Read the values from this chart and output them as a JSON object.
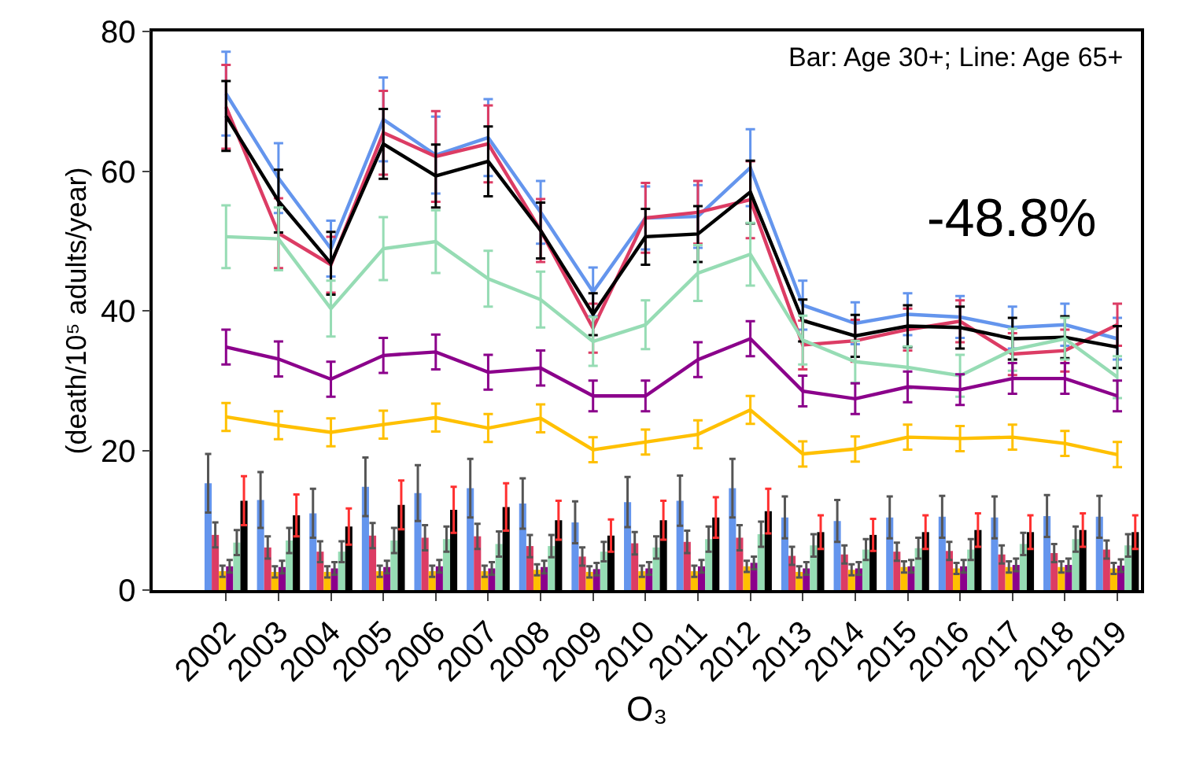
{
  "chart_data": {
    "type": "bar",
    "xlabel": "O₃",
    "ylabel": "(death/10⁵ adults/year)",
    "annotations": [
      "Bar: Age 30+; Line: Age 65+",
      "-48.8%"
    ],
    "categories": [
      "2002",
      "2003",
      "2004",
      "2005",
      "2006",
      "2007",
      "2008",
      "2009",
      "2010",
      "2011",
      "2012",
      "2013",
      "2014",
      "2015",
      "2016",
      "2017",
      "2018",
      "2019"
    ],
    "ylim": [
      0,
      80
    ],
    "yticks": [
      0,
      20,
      40,
      60,
      80
    ],
    "grid": false,
    "series": [
      {
        "color": "#6495ed",
        "values": [
          15.3,
          12.9,
          11.0,
          14.8,
          13.9,
          14.6,
          12.4,
          9.7,
          12.6,
          12.8,
          14.6,
          10.4,
          9.9,
          10.4,
          10.5,
          10.4,
          10.6,
          10.5
        ],
        "errors": [
          4.2,
          4.0,
          3.5,
          4.2,
          4.0,
          4.2,
          3.6,
          3.0,
          3.6,
          3.6,
          4.2,
          3.0,
          3.0,
          3.0,
          3.0,
          3.0,
          3.0,
          3.0
        ]
      },
      {
        "color": "#dc3c64",
        "values": [
          7.9,
          6.1,
          5.5,
          7.8,
          7.5,
          7.7,
          6.3,
          4.8,
          6.7,
          6.9,
          7.5,
          4.9,
          5.1,
          5.5,
          5.6,
          5.1,
          5.3,
          5.8
        ],
        "errors": [
          1.8,
          1.6,
          1.5,
          1.8,
          1.8,
          1.8,
          1.6,
          1.3,
          1.6,
          1.6,
          1.8,
          1.3,
          1.3,
          1.3,
          1.3,
          1.3,
          1.3,
          1.3
        ]
      },
      {
        "color": "#ffc000",
        "values": [
          2.7,
          2.6,
          2.6,
          2.7,
          2.7,
          2.7,
          2.9,
          2.6,
          2.7,
          2.7,
          3.4,
          2.6,
          2.9,
          3.3,
          3.1,
          3.3,
          3.3,
          3.1
        ],
        "errors": [
          0.8,
          0.8,
          0.8,
          0.8,
          0.8,
          0.8,
          0.8,
          0.8,
          0.8,
          0.8,
          0.8,
          0.8,
          0.8,
          0.8,
          0.8,
          0.8,
          0.8,
          0.8
        ]
      },
      {
        "color": "#8b008b",
        "values": [
          3.4,
          3.3,
          3.1,
          3.3,
          3.4,
          3.1,
          3.3,
          3.0,
          3.1,
          3.4,
          3.9,
          3.1,
          3.1,
          3.4,
          3.4,
          3.6,
          3.6,
          3.5
        ],
        "errors": [
          0.9,
          0.9,
          0.9,
          0.9,
          0.9,
          0.9,
          0.9,
          0.9,
          0.9,
          0.9,
          0.9,
          0.9,
          0.9,
          0.9,
          0.9,
          0.9,
          0.9,
          0.9
        ]
      },
      {
        "color": "#96dcb4",
        "values": [
          6.8,
          7.1,
          5.5,
          7.1,
          7.3,
          6.6,
          6.3,
          5.5,
          6.1,
          7.3,
          8.0,
          6.4,
          5.8,
          6.0,
          5.8,
          6.6,
          7.3,
          6.4
        ],
        "errors": [
          1.8,
          1.8,
          1.5,
          1.8,
          1.8,
          1.8,
          1.6,
          1.4,
          1.6,
          1.8,
          1.8,
          1.6,
          1.5,
          1.5,
          1.5,
          1.6,
          1.8,
          1.6
        ]
      },
      {
        "color": "#000000",
        "values": [
          12.8,
          10.7,
          9.1,
          12.2,
          11.5,
          11.9,
          10.0,
          7.8,
          10.0,
          10.4,
          11.3,
          8.3,
          7.9,
          8.3,
          8.6,
          8.3,
          8.6,
          8.3
        ],
        "errors": [
          3.5,
          3.0,
          2.6,
          3.5,
          3.3,
          3.4,
          2.8,
          2.3,
          2.8,
          2.9,
          3.2,
          2.4,
          2.3,
          2.4,
          2.4,
          2.4,
          2.4,
          2.4
        ]
      },
      {
        "type": "line",
        "color": "#6495ed",
        "values": [
          71.1,
          59.0,
          48.9,
          67.4,
          62.3,
          64.8,
          54.1,
          42.7,
          53.3,
          53.5,
          60.5,
          40.8,
          38.2,
          39.5,
          39.1,
          37.6,
          38.0,
          36.0
        ],
        "errors": [
          6,
          5,
          4,
          6,
          5.5,
          5.5,
          4.5,
          3.5,
          4.5,
          4.5,
          5.5,
          3.5,
          3,
          3,
          3,
          3,
          3,
          3
        ]
      },
      {
        "type": "line",
        "color": "#dc3c64",
        "values": [
          69.2,
          51.1,
          46.6,
          65.5,
          62.1,
          63.9,
          51.5,
          37.5,
          53.3,
          54.1,
          55.9,
          35.1,
          35.7,
          37.3,
          38.5,
          33.8,
          34.3,
          38.0
        ],
        "errors": [
          6,
          5,
          4,
          6,
          6.5,
          5.5,
          4.5,
          3.5,
          5,
          4.5,
          5.5,
          3.5,
          3,
          3,
          3,
          3,
          3,
          3
        ]
      },
      {
        "type": "line",
        "color": "#000000",
        "values": [
          67.9,
          55.7,
          46.8,
          63.9,
          59.3,
          61.4,
          51.5,
          39.5,
          50.6,
          51.0,
          57.0,
          38.6,
          36.4,
          37.8,
          37.6,
          36.0,
          36.2,
          34.8
        ],
        "errors": [
          5,
          4.5,
          4.5,
          5,
          4.5,
          5,
          4,
          3,
          4,
          4,
          4.5,
          3,
          3,
          3,
          3,
          3,
          3,
          3
        ]
      },
      {
        "type": "line",
        "color": "#96dcb4",
        "values": [
          50.6,
          50.3,
          40.3,
          48.9,
          49.9,
          44.6,
          41.6,
          35.6,
          38.0,
          45.4,
          48.1,
          35.8,
          32.7,
          31.9,
          30.7,
          34.4,
          36.0,
          30.5
        ],
        "errors": [
          4.5,
          4.5,
          4,
          4.5,
          4.5,
          4,
          4,
          3.5,
          3.5,
          4,
          4.5,
          3.5,
          3,
          3,
          3,
          3,
          3,
          3
        ]
      },
      {
        "type": "line",
        "color": "#8b008b",
        "values": [
          34.8,
          33.1,
          30.2,
          33.6,
          34.1,
          31.2,
          31.8,
          27.8,
          27.8,
          33.0,
          36.0,
          28.5,
          27.4,
          29.1,
          28.7,
          30.3,
          30.3,
          27.8
        ],
        "errors": [
          2.5,
          2.5,
          2.5,
          2.5,
          2.5,
          2.5,
          2.5,
          2.2,
          2.2,
          2.5,
          2.5,
          2.2,
          2.2,
          2.2,
          2.2,
          2.2,
          2.2,
          2.2
        ]
      },
      {
        "type": "line",
        "color": "#ffc000",
        "values": [
          24.8,
          23.6,
          22.6,
          23.7,
          24.7,
          23.2,
          24.6,
          20.1,
          21.2,
          22.3,
          25.8,
          19.5,
          20.2,
          21.9,
          21.7,
          21.9,
          21.0,
          19.4
        ],
        "errors": [
          2,
          2,
          2,
          2,
          2,
          2,
          2,
          1.8,
          1.8,
          2,
          2,
          1.8,
          1.8,
          1.8,
          1.8,
          1.8,
          1.8,
          1.8
        ]
      }
    ]
  }
}
